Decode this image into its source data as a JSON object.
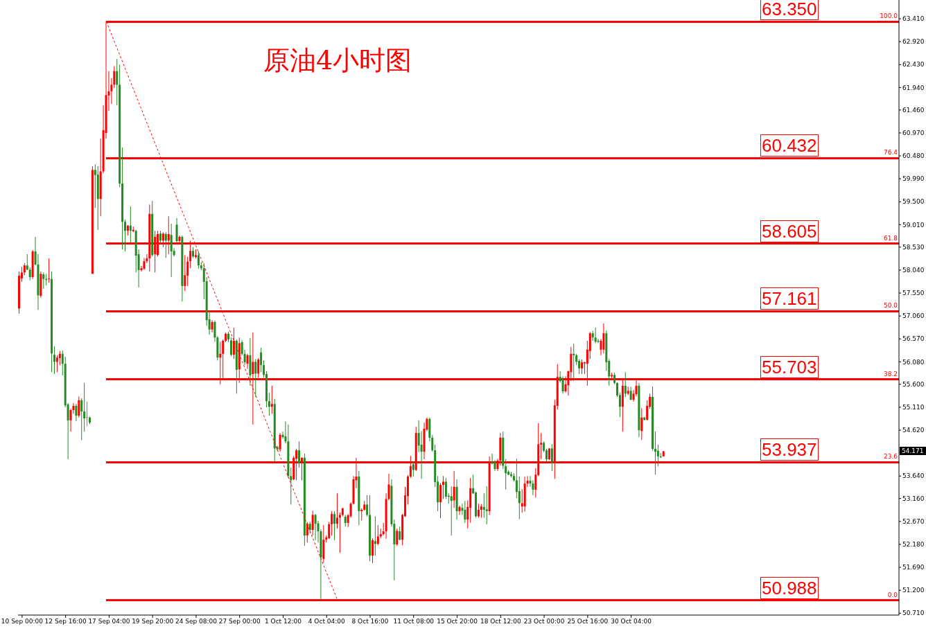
{
  "chart_data": {
    "type": "candlestick",
    "title": "原油4小时图",
    "categories": [
      null,
      "10 Sep 00:00",
      null,
      null,
      null,
      null,
      null,
      null,
      null,
      null,
      null,
      null,
      null,
      null,
      null,
      null,
      null,
      "12 Sep 16:00",
      null,
      null,
      null,
      null,
      null,
      null,
      null,
      null,
      null,
      null,
      null,
      null,
      null,
      null,
      null,
      "17 Sep 04:00",
      null,
      null,
      null,
      null,
      null,
      null,
      null,
      null,
      null,
      null,
      null,
      null,
      null,
      null,
      null,
      "19 Sep 20:00",
      null,
      null,
      null,
      null,
      null,
      null,
      null,
      null,
      null,
      null,
      null,
      null,
      null,
      null,
      null,
      "24 Sep 08:00",
      null,
      null,
      null,
      null,
      null,
      null,
      null,
      null,
      null,
      null,
      null,
      null,
      null,
      null,
      null,
      "27 Sep 00:00",
      null,
      null,
      null,
      null,
      null,
      null,
      null,
      null,
      null,
      null,
      null,
      null,
      null,
      null,
      null,
      "1 Oct 12:00",
      null,
      null,
      null,
      null,
      null,
      null,
      null,
      null,
      null,
      null,
      null,
      null,
      null,
      null,
      null,
      "4 Oct 04:00",
      null,
      null,
      null,
      null,
      null,
      null,
      null,
      null,
      null,
      null,
      null,
      null,
      null,
      null,
      null,
      "8 Oct 16:00",
      null,
      null,
      null,
      null,
      null,
      null,
      null,
      null,
      null,
      null,
      null,
      null,
      null,
      null,
      null,
      "11 Oct 08:00",
      null,
      null,
      null,
      null,
      null,
      null,
      null,
      null,
      null,
      null,
      null,
      null,
      null,
      null,
      null,
      "15 Oct 20:00",
      null,
      null,
      null,
      null,
      null,
      null,
      null,
      null,
      null,
      null,
      null,
      null,
      null,
      null,
      null,
      "18 Oct 12:00",
      null,
      null,
      null,
      null,
      null,
      null,
      null,
      null,
      null,
      null,
      null,
      null,
      null,
      null,
      null,
      "23 Oct 00:00",
      null,
      null,
      null,
      null,
      null,
      null,
      null,
      null,
      null,
      null,
      null,
      null,
      null,
      null,
      null,
      "25 Oct 16:00",
      null,
      null,
      null,
      null,
      null,
      null,
      null,
      null,
      null,
      null,
      null,
      null,
      null,
      null,
      null,
      "30 Oct 04:00",
      null,
      null,
      null,
      null,
      null,
      null,
      null,
      null,
      null,
      null,
      null,
      null,
      null,
      null,
      null,
      null,
      null,
      null,
      null,
      null,
      null,
      null,
      null,
      null,
      null,
      null,
      null,
      null,
      null,
      null,
      null,
      null,
      null,
      null,
      null,
      null,
      null,
      null,
      null,
      null,
      null,
      null,
      null,
      null,
      null,
      null,
      null,
      null,
      null,
      null,
      null,
      null,
      null,
      null,
      null,
      null,
      null,
      null,
      null,
      null,
      null,
      null,
      null,
      null,
      null,
      null,
      null,
      null,
      null,
      null,
      null,
      null,
      null,
      null,
      null,
      null,
      null,
      null,
      null,
      null,
      null,
      null,
      null,
      null,
      null,
      null,
      null,
      null,
      null,
      null,
      null,
      null,
      null,
      null,
      null,
      null,
      null,
      null
    ],
    "ohlc": [
      [
        57.22,
        58.01,
        57.11,
        57.92
      ],
      [
        57.86,
        58.11,
        57.79,
        57.99
      ],
      [
        57.99,
        58.19,
        57.93,
        58.14
      ],
      [
        58.14,
        58.38,
        58.04,
        58.05
      ],
      [
        58.05,
        58.1,
        57.82,
        57.89
      ],
      [
        57.89,
        58.47,
        57.85,
        58.44
      ],
      [
        58.44,
        58.75,
        58.14,
        58.16
      ],
      [
        58.16,
        58.38,
        57.19,
        57.5
      ],
      [
        57.49,
        58.01,
        57.45,
        57.96
      ],
      [
        57.95,
        57.99,
        57.64,
        57.85
      ],
      [
        57.85,
        57.96,
        57.71,
        57.83
      ],
      [
        57.85,
        58.29,
        57.77,
        57.86
      ],
      [
        57.85,
        58.01,
        55.86,
        56.26
      ],
      [
        56.23,
        56.41,
        55.82,
        56.08
      ],
      [
        56.08,
        56.22,
        55.86,
        56.17
      ],
      [
        56.16,
        56.31,
        56.01,
        56.25
      ],
      [
        56.25,
        56.32,
        55.79,
        56.04
      ],
      [
        56.04,
        56.19,
        55.11,
        55.15
      ],
      [
        55.17,
        55.2,
        54.0,
        54.83
      ],
      [
        54.83,
        55.08,
        54.59,
        55.05
      ],
      [
        55.05,
        55.2,
        54.97,
        55.14
      ],
      [
        55.14,
        55.18,
        54.81,
        54.93
      ],
      [
        54.93,
        55.34,
        54.89,
        55.26
      ],
      [
        55.26,
        55.3,
        54.41,
        55.02
      ],
      [
        55.02,
        55.63,
        54.59,
        54.87
      ],
      [
        54.9,
        55.23,
        54.71,
        54.9
      ],
      [
        54.89,
        54.91,
        54.75,
        54.78
      ],
      [
        57.96,
        60.26,
        57.96,
        60.18
      ],
      [
        60.18,
        60.3,
        59.37,
        60.07
      ],
      [
        60.08,
        60.26,
        58.9,
        59.56
      ],
      [
        59.56,
        60.85,
        59.19,
        60.15
      ],
      [
        60.15,
        61.56,
        60.11,
        61.03
      ],
      [
        60.97,
        63.35,
        60.85,
        61.78
      ],
      [
        61.77,
        62.29,
        61.44,
        61.86
      ],
      [
        61.86,
        62.14,
        61.59,
        62.0
      ],
      [
        62.0,
        62.4,
        61.93,
        62.29
      ],
      [
        62.29,
        62.55,
        61.56,
        62.0
      ],
      [
        62.0,
        62.43,
        59.81,
        59.89
      ],
      [
        59.89,
        60.66,
        58.48,
        59.07
      ],
      [
        59.07,
        59.12,
        58.44,
        58.88
      ],
      [
        58.88,
        59.0,
        58.78,
        58.99
      ],
      [
        58.99,
        59.4,
        58.63,
        58.88
      ],
      [
        58.87,
        58.97,
        58.85,
        58.9
      ],
      [
        58.88,
        58.9,
        57.99,
        58.35
      ],
      [
        58.38,
        58.48,
        57.67,
        58.04
      ],
      [
        58.04,
        58.13,
        58.01,
        58.08
      ],
      [
        58.07,
        58.3,
        58.04,
        58.23
      ],
      [
        58.23,
        58.38,
        58.19,
        58.29
      ],
      [
        58.29,
        59.44,
        58.01,
        59.24
      ],
      [
        59.24,
        59.52,
        58.33,
        58.36
      ],
      [
        58.38,
        58.88,
        57.99,
        58.75
      ],
      [
        58.36,
        58.88,
        58.33,
        58.81
      ],
      [
        58.82,
        58.88,
        58.59,
        58.67
      ],
      [
        58.67,
        58.85,
        58.53,
        58.82
      ],
      [
        58.81,
        58.85,
        58.3,
        58.67
      ],
      [
        58.67,
        59.19,
        58.38,
        58.81
      ],
      [
        58.79,
        59.03,
        57.89,
        58.44
      ],
      [
        58.45,
        58.51,
        58.33,
        58.36
      ],
      [
        59.01,
        59.15,
        58.63,
        58.66
      ],
      [
        58.66,
        58.78,
        58.63,
        58.75
      ],
      [
        58.75,
        58.78,
        57.37,
        57.7
      ],
      [
        57.7,
        58.36,
        57.59,
        57.93
      ],
      [
        57.92,
        58.33,
        57.7,
        58.22
      ],
      [
        58.23,
        58.67,
        58.08,
        58.45
      ],
      [
        58.45,
        58.53,
        58.3,
        58.33
      ],
      [
        58.32,
        58.48,
        58.29,
        58.36
      ],
      [
        58.36,
        58.44,
        58.07,
        58.14
      ],
      [
        58.14,
        58.21,
        58.04,
        58.08
      ],
      [
        58.08,
        58.19,
        57.42,
        57.79
      ],
      [
        57.8,
        57.89,
        56.85,
        56.97
      ],
      [
        56.99,
        57.15,
        56.66,
        56.77
      ],
      [
        56.77,
        56.97,
        56.71,
        56.93
      ],
      [
        56.93,
        56.96,
        56.51,
        56.6
      ],
      [
        56.6,
        56.63,
        56.11,
        56.17
      ],
      [
        56.17,
        56.51,
        55.6,
        56.25
      ],
      [
        56.25,
        56.56,
        55.71,
        56.53
      ],
      [
        56.53,
        56.71,
        56.5,
        56.68
      ],
      [
        56.68,
        56.72,
        56.5,
        56.56
      ],
      [
        56.54,
        56.6,
        56.2,
        56.23
      ],
      [
        56.23,
        56.81,
        56.14,
        56.53
      ],
      [
        56.53,
        56.56,
        55.4,
        55.91
      ],
      [
        55.92,
        56.6,
        55.63,
        56.48
      ],
      [
        56.5,
        56.54,
        56.22,
        56.25
      ],
      [
        56.25,
        56.34,
        56.01,
        56.07
      ],
      [
        56.04,
        56.25,
        55.93,
        56.22
      ],
      [
        56.22,
        56.59,
        55.57,
        55.79
      ],
      [
        55.82,
        56.71,
        54.74,
        56.08
      ],
      [
        56.08,
        56.14,
        55.33,
        55.83
      ],
      [
        55.83,
        56.16,
        55.74,
        56.13
      ],
      [
        56.28,
        56.38,
        55.86,
        56.01
      ],
      [
        56.01,
        56.11,
        55.74,
        55.8
      ],
      [
        55.82,
        55.88,
        55.11,
        55.24
      ],
      [
        55.24,
        55.42,
        54.93,
        55.12
      ],
      [
        55.12,
        55.57,
        54.97,
        55.18
      ],
      [
        55.18,
        55.29,
        53.94,
        54.23
      ],
      [
        54.26,
        54.29,
        54.17,
        54.21
      ],
      [
        54.21,
        54.56,
        54.16,
        54.52
      ],
      [
        54.52,
        54.59,
        54.44,
        54.47
      ],
      [
        54.49,
        54.81,
        54.34,
        54.38
      ],
      [
        54.38,
        54.74,
        53.6,
        53.64
      ],
      [
        53.64,
        53.82,
        53.03,
        53.55
      ],
      [
        53.57,
        54.07,
        53.55,
        54.03
      ],
      [
        54.01,
        54.22,
        53.55,
        54.19
      ],
      [
        54.19,
        54.38,
        53.82,
        53.92
      ],
      [
        53.92,
        54.04,
        53.55,
        54.03
      ],
      [
        54.03,
        54.12,
        52.15,
        52.37
      ],
      [
        52.37,
        52.66,
        52.22,
        52.62
      ],
      [
        52.62,
        52.66,
        52.41,
        52.49
      ],
      [
        52.49,
        52.9,
        52.37,
        52.81
      ],
      [
        52.81,
        52.83,
        52.27,
        52.62
      ],
      [
        52.63,
        52.68,
        52.22,
        52.46
      ],
      [
        52.46,
        52.5,
        50.99,
        51.9
      ],
      [
        51.87,
        52.59,
        51.79,
        52.28
      ],
      [
        52.28,
        52.37,
        52.22,
        52.33
      ],
      [
        52.31,
        52.66,
        52.3,
        52.61
      ],
      [
        52.61,
        52.89,
        52.37,
        52.83
      ],
      [
        52.83,
        52.89,
        52.27,
        52.62
      ],
      [
        52.62,
        53.27,
        52.52,
        52.75
      ],
      [
        52.75,
        52.86,
        52.0,
        52.81
      ],
      [
        52.81,
        52.96,
        52.78,
        52.95
      ],
      [
        52.77,
        52.81,
        52.56,
        52.64
      ],
      [
        52.64,
        52.83,
        52.55,
        52.8
      ],
      [
        52.78,
        53.08,
        52.75,
        53.05
      ],
      [
        53.05,
        53.64,
        53.03,
        53.57
      ],
      [
        53.55,
        54.03,
        53.38,
        53.63
      ],
      [
        53.63,
        53.75,
        52.59,
        52.89
      ],
      [
        52.89,
        52.95,
        52.69,
        52.92
      ],
      [
        52.92,
        53.11,
        52.9,
        53.03
      ],
      [
        53.03,
        53.23,
        52.78,
        52.81
      ],
      [
        52.81,
        53.23,
        51.82,
        51.94
      ],
      [
        51.94,
        52.31,
        51.78,
        52.27
      ],
      [
        52.25,
        52.78,
        51.94,
        52.19
      ],
      [
        52.19,
        52.59,
        52.16,
        52.35
      ],
      [
        52.35,
        52.52,
        52.31,
        52.4
      ],
      [
        52.4,
        52.64,
        52.37,
        52.46
      ],
      [
        52.46,
        53.27,
        52.3,
        53.15
      ],
      [
        53.15,
        53.69,
        53.12,
        53.46
      ],
      [
        53.43,
        53.57,
        52.56,
        52.61
      ],
      [
        52.62,
        52.71,
        51.41,
        52.18
      ],
      [
        52.18,
        52.52,
        52.15,
        52.47
      ],
      [
        52.46,
        52.56,
        52.27,
        52.28
      ],
      [
        52.28,
        52.83,
        52.16,
        52.81
      ],
      [
        52.78,
        53.41,
        52.77,
        53.23
      ],
      [
        53.21,
        53.66,
        53.03,
        53.63
      ],
      [
        53.63,
        54.07,
        53.6,
        53.85
      ],
      [
        53.89,
        53.94,
        53.63,
        53.77
      ],
      [
        53.77,
        54.69,
        53.75,
        54.56
      ],
      [
        54.56,
        54.83,
        54.15,
        54.29
      ],
      [
        54.31,
        54.6,
        53.58,
        54.16
      ],
      [
        54.16,
        54.78,
        54.0,
        54.65
      ],
      [
        54.63,
        54.89,
        54.6,
        54.86
      ],
      [
        54.86,
        54.89,
        54.38,
        54.46
      ],
      [
        54.46,
        54.52,
        54.16,
        54.19
      ],
      [
        54.19,
        54.31,
        53.41,
        53.51
      ],
      [
        53.52,
        53.64,
        52.89,
        53.08
      ],
      [
        53.08,
        53.49,
        52.74,
        53.45
      ],
      [
        53.45,
        53.64,
        53.15,
        53.52
      ],
      [
        53.52,
        53.6,
        53.15,
        53.2
      ],
      [
        53.22,
        53.27,
        53.05,
        53.2
      ],
      [
        53.21,
        53.42,
        52.37,
        53.11
      ],
      [
        53.12,
        53.75,
        52.96,
        53.41
      ],
      [
        53.41,
        53.57,
        52.71,
        52.89
      ],
      [
        52.89,
        53.01,
        52.81,
        52.98
      ],
      [
        52.96,
        53.05,
        52.81,
        52.9
      ],
      [
        52.92,
        53.11,
        52.64,
        52.71
      ],
      [
        52.71,
        53.12,
        52.52,
        52.98
      ],
      [
        52.96,
        53.6,
        52.64,
        53.38
      ],
      [
        53.38,
        53.67,
        53.26,
        53.27
      ],
      [
        53.29,
        53.3,
        52.75,
        52.78
      ],
      [
        52.78,
        53.05,
        52.75,
        52.92
      ],
      [
        52.92,
        53.04,
        52.75,
        52.99
      ],
      [
        52.98,
        53.27,
        52.75,
        52.92
      ],
      [
        52.93,
        53.42,
        52.61,
        52.89
      ],
      [
        52.89,
        54.06,
        52.81,
        53.95
      ],
      [
        53.95,
        54.12,
        53.89,
        53.92
      ],
      [
        53.94,
        53.98,
        53.75,
        53.79
      ],
      [
        53.79,
        54.01,
        53.75,
        53.97
      ],
      [
        53.97,
        54.56,
        53.86,
        54.46
      ],
      [
        54.46,
        54.59,
        53.79,
        53.86
      ],
      [
        53.85,
        54.0,
        53.35,
        53.7
      ],
      [
        53.73,
        53.76,
        53.66,
        53.67
      ],
      [
        53.68,
        53.73,
        53.61,
        53.64
      ],
      [
        53.64,
        53.7,
        53.52,
        53.55
      ],
      [
        53.55,
        54.01,
        53.17,
        53.3
      ],
      [
        53.32,
        53.63,
        52.72,
        53.06
      ],
      [
        52.99,
        53.36,
        52.86,
        53.06
      ],
      [
        52.99,
        53.63,
        52.88,
        53.48
      ],
      [
        53.48,
        53.64,
        53.41,
        53.54
      ],
      [
        53.54,
        53.64,
        53.41,
        53.48
      ],
      [
        53.48,
        53.55,
        53.23,
        53.35
      ],
      [
        53.35,
        53.81,
        53.18,
        53.67
      ],
      [
        53.66,
        54.77,
        53.64,
        54.32
      ],
      [
        54.31,
        54.56,
        54.0,
        54.35
      ],
      [
        54.35,
        54.38,
        54.15,
        54.18
      ],
      [
        54.19,
        54.22,
        53.94,
        54.0
      ],
      [
        54.0,
        54.23,
        53.98,
        54.23
      ],
      [
        54.23,
        54.32,
        53.75,
        53.92
      ],
      [
        53.92,
        55.27,
        53.58,
        55.15
      ],
      [
        55.14,
        56.03,
        55.06,
        55.76
      ],
      [
        55.76,
        55.88,
        55.64,
        55.67
      ],
      [
        55.71,
        55.77,
        55.4,
        55.45
      ],
      [
        55.45,
        55.77,
        55.42,
        55.6
      ],
      [
        55.58,
        55.89,
        55.36,
        55.88
      ],
      [
        55.86,
        56.4,
        55.67,
        56.25
      ],
      [
        56.25,
        56.47,
        55.67,
        56.22
      ],
      [
        56.22,
        56.25,
        56.01,
        56.08
      ],
      [
        56.1,
        56.14,
        55.82,
        55.94
      ],
      [
        55.94,
        56.13,
        55.82,
        56.07
      ],
      [
        56.05,
        56.08,
        55.82,
        56.07
      ],
      [
        56.04,
        56.53,
        55.57,
        56.34
      ],
      [
        56.31,
        56.72,
        56.14,
        56.69
      ],
      [
        56.69,
        56.74,
        56.53,
        56.6
      ],
      [
        56.6,
        56.81,
        56.48,
        56.51
      ],
      [
        56.53,
        56.57,
        56.48,
        56.51
      ],
      [
        56.34,
        56.57,
        56.22,
        56.53
      ],
      [
        56.34,
        56.9,
        56.26,
        56.69
      ],
      [
        56.69,
        56.75,
        55.89,
        56.07
      ],
      [
        56.1,
        56.14,
        55.57,
        55.77
      ],
      [
        55.77,
        55.85,
        55.71,
        55.8
      ],
      [
        55.8,
        55.85,
        55.6,
        55.63
      ],
      [
        55.63,
        55.64,
        55.33,
        55.36
      ],
      [
        55.37,
        55.42,
        54.9,
        55.12
      ],
      [
        55.12,
        55.71,
        54.59,
        55.57
      ],
      [
        55.57,
        55.86,
        55.33,
        55.4
      ],
      [
        55.4,
        55.55,
        55.37,
        55.46
      ],
      [
        55.46,
        55.55,
        55.26,
        55.27
      ],
      [
        55.27,
        55.48,
        55.23,
        55.4
      ],
      [
        55.39,
        55.71,
        55.34,
        55.57
      ],
      [
        55.57,
        55.63,
        54.47,
        54.62
      ],
      [
        54.6,
        55.09,
        54.41,
        54.89
      ],
      [
        54.89,
        54.9,
        54.83,
        54.84
      ],
      [
        54.84,
        55.26,
        54.83,
        55.14
      ],
      [
        55.12,
        55.4,
        55.08,
        55.33
      ],
      [
        55.33,
        55.55,
        54.18,
        54.22
      ],
      [
        54.22,
        54.59,
        53.67,
        54.16
      ],
      [
        54.18,
        54.31,
        53.85,
        54.06
      ],
      [
        54.06,
        54.13,
        54.03,
        54.04
      ],
      [
        54.06,
        54.17,
        54.06,
        54.17
      ],
      null,
      null,
      null,
      null,
      null,
      null,
      null,
      null,
      null,
      null,
      null,
      null,
      null,
      null,
      null,
      null,
      null,
      null,
      null,
      null,
      null,
      null,
      null,
      null,
      null,
      null,
      null,
      null,
      null,
      null,
      null,
      null,
      null,
      null,
      null,
      null,
      null,
      null,
      null,
      null,
      null,
      null,
      null,
      null,
      null,
      null,
      null,
      null,
      null,
      null,
      null,
      null,
      null,
      null,
      null,
      null,
      null,
      null,
      null,
      null,
      null,
      null,
      null,
      null,
      null,
      null,
      null,
      null,
      null,
      null,
      null,
      null,
      null,
      null,
      null,
      null,
      null,
      null,
      null,
      null,
      null,
      null,
      null,
      null,
      null,
      null
    ],
    "colors": [
      "#ff0000",
      "#ff0000",
      "#ff0000",
      "#228b22",
      "#228b22",
      "#ff0000",
      "#228b22",
      "#228b22",
      "#ff0000",
      "#228b22",
      "#228b22",
      "#ff0000",
      "#228b22",
      "#228b22",
      "#ff0000",
      "#ff0000",
      "#228b22",
      "#228b22",
      "#228b22",
      "#ff0000",
      "#ff0000",
      "#228b22",
      "#ff0000",
      "#228b22",
      "#228b22",
      "#808080",
      "#228b22",
      "#ff0000",
      "#228b22",
      "#228b22",
      "#ff0000",
      "#ff0000",
      "#ff0000",
      "#ff0000",
      "#ff0000",
      "#ff0000",
      "#228b22",
      "#228b22",
      "#228b22",
      "#228b22",
      "#ff0000",
      "#228b22",
      "#ff0000",
      "#228b22",
      "#228b22",
      "#ff0000",
      "#ff0000",
      "#ff0000",
      "#ff0000",
      "#228b22",
      "#ff0000",
      "#ff0000",
      "#228b22",
      "#ff0000",
      "#228b22",
      "#ff0000",
      "#228b22",
      "#228b22",
      "#228b22",
      "#ff0000",
      "#228b22",
      "#ff0000",
      "#ff0000",
      "#ff0000",
      "#228b22",
      "#ff0000",
      "#228b22",
      "#228b22",
      "#228b22",
      "#228b22",
      "#228b22",
      "#ff0000",
      "#228b22",
      "#228b22",
      "#ff0000",
      "#ff0000",
      "#ff0000",
      "#228b22",
      "#228b22",
      "#ff0000",
      "#228b22",
      "#ff0000",
      "#228b22",
      "#228b22",
      "#ff0000",
      "#228b22",
      "#ff0000",
      "#228b22",
      "#ff0000",
      "#228b22",
      "#228b22",
      "#228b22",
      "#228b22",
      "#ff0000",
      "#228b22",
      "#228b22",
      "#ff0000",
      "#228b22",
      "#228b22",
      "#228b22",
      "#228b22",
      "#ff0000",
      "#ff0000",
      "#228b22",
      "#ff0000",
      "#228b22",
      "#ff0000",
      "#228b22",
      "#ff0000",
      "#228b22",
      "#228b22",
      "#228b22",
      "#ff0000",
      "#ff0000",
      "#ff0000",
      "#ff0000",
      "#228b22",
      "#ff0000",
      "#ff0000",
      "#ff0000",
      "#228b22",
      "#ff0000",
      "#ff0000",
      "#ff0000",
      "#ff0000",
      "#228b22",
      "#ff0000",
      "#ff0000",
      "#228b22",
      "#228b22",
      "#ff0000",
      "#228b22",
      "#ff0000",
      "#ff0000",
      "#ff0000",
      "#ff0000",
      "#ff0000",
      "#228b22",
      "#228b22",
      "#ff0000",
      "#228b22",
      "#ff0000",
      "#ff0000",
      "#ff0000",
      "#ff0000",
      "#228b22",
      "#ff0000",
      "#228b22",
      "#228b22",
      "#ff0000",
      "#ff0000",
      "#228b22",
      "#228b22",
      "#228b22",
      "#228b22",
      "#ff0000",
      "#ff0000",
      "#228b22",
      "#228b22",
      "#228b22",
      "#ff0000",
      "#228b22",
      "#ff0000",
      "#228b22",
      "#228b22",
      "#ff0000",
      "#ff0000",
      "#228b22",
      "#228b22",
      "#ff0000",
      "#ff0000",
      "#228b22",
      "#228b22",
      "#ff0000",
      "#228b22",
      "#228b22",
      "#ff0000",
      "#ff0000",
      "#228b22",
      "#228b22",
      "#228b22",
      "#228b22",
      "#228b22",
      "#228b22",
      "#228b22",
      "#ff0000",
      "#ff0000",
      "#ff0000",
      "#228b22",
      "#228b22",
      "#ff0000",
      "#ff0000",
      "#ff0000",
      "#228b22",
      "#228b22",
      "#ff0000",
      "#228b22",
      "#ff0000",
      "#ff0000",
      "#228b22",
      "#228b22",
      "#ff0000",
      "#ff0000",
      "#ff0000",
      "#228b22",
      "#228b22",
      "#228b22",
      "#ff0000",
      "#ff0000",
      "#ff0000",
      "#ff0000",
      "#228b22",
      "#228b22",
      "#228b22",
      "#ff0000",
      "#ff0000",
      "#228b22",
      "#228b22",
      "#ff0000",
      "#228b22",
      "#228b22",
      "#228b22",
      "#ff0000",
      "#228b22",
      "#ff0000",
      "#228b22",
      "#ff0000",
      "#ff0000",
      "#228b22",
      "#ff0000",
      "#228b22",
      "#ff0000",
      "#ff0000",
      "#228b22",
      "#228b22",
      "#228b22",
      "#228b22",
      "#ff0000",
      null,
      null,
      null,
      null,
      null,
      null,
      null,
      null,
      null,
      null,
      null,
      null,
      null,
      null,
      null,
      null,
      null,
      null,
      null,
      null,
      null,
      null,
      null,
      null,
      null,
      null,
      null,
      null,
      null,
      null,
      null,
      null,
      null,
      null,
      null,
      null,
      null,
      null,
      null,
      null,
      null,
      null,
      null,
      null,
      null,
      null,
      null,
      null,
      null,
      null,
      null,
      null,
      null,
      null,
      null,
      null,
      null,
      null,
      null,
      null,
      null,
      null,
      null,
      null,
      null,
      null,
      null,
      null,
      null,
      null,
      null,
      null,
      null,
      null,
      null,
      null,
      null,
      null,
      null,
      null,
      null,
      null,
      null,
      null,
      null,
      null
    ],
    "series": [
      {
        "type": "line",
        "color": "#ff0000",
        "line_style": "dashed",
        "values": [
          null,
          null,
          null,
          null,
          null,
          null,
          null,
          null,
          null,
          null,
          null,
          null,
          null,
          null,
          null,
          null,
          null,
          null,
          null,
          null,
          null,
          null,
          null,
          null,
          null,
          null,
          null,
          null,
          null,
          null,
          null,
          null,
          63.35,
          null,
          null,
          null,
          null,
          null,
          null,
          null,
          null,
          null,
          null,
          null,
          null,
          null,
          null,
          null,
          null,
          null,
          null,
          null,
          null,
          null,
          null,
          null,
          null,
          null,
          null,
          null,
          null,
          null,
          null,
          null,
          null,
          null,
          null,
          null,
          null,
          null,
          null,
          null,
          null,
          null,
          null,
          null,
          null,
          null,
          null,
          null,
          null,
          null,
          null,
          null,
          null,
          null,
          null,
          null,
          null,
          null,
          null,
          null,
          null,
          null,
          null,
          null,
          null,
          null,
          null,
          null,
          null,
          null,
          null,
          null,
          null,
          null,
          null,
          null,
          null,
          null,
          null,
          null,
          null,
          null,
          null,
          null,
          null,
          50.99,
          null,
          null,
          null,
          null,
          null,
          null,
          null,
          null,
          null,
          null,
          null,
          null,
          null,
          null,
          null,
          null,
          null,
          null,
          null,
          null,
          null,
          null,
          null,
          null,
          null,
          null,
          null,
          null,
          null,
          null,
          null,
          null,
          null,
          null,
          null,
          null,
          null,
          null,
          null,
          null,
          null,
          null,
          null,
          null,
          null,
          null,
          null,
          null,
          null,
          null,
          null,
          null,
          null,
          null,
          null,
          null,
          null,
          null,
          null,
          null,
          null,
          null,
          null,
          null,
          null,
          null,
          null,
          null,
          null,
          null,
          null,
          null,
          null,
          null,
          null,
          null,
          null,
          null,
          null,
          null,
          null,
          null,
          null,
          null,
          null,
          null,
          null,
          null,
          null,
          null,
          null,
          null,
          null,
          null,
          null,
          null,
          null,
          null,
          null,
          null,
          null,
          null,
          null,
          null,
          null,
          null,
          null,
          null,
          null,
          null,
          null,
          null,
          null,
          null,
          null,
          null,
          null,
          null,
          null,
          null,
          null,
          null,
          null,
          null,
          null,
          null,
          null,
          null,
          null,
          null,
          null,
          null,
          null,
          null,
          null,
          null,
          null,
          null,
          null,
          null,
          null,
          null,
          null,
          null,
          null,
          null,
          null,
          null,
          null,
          null,
          null,
          null,
          null,
          null,
          null,
          null,
          null,
          null,
          null,
          null,
          null,
          null,
          null,
          null,
          null,
          null,
          null,
          null,
          null,
          null,
          null,
          null,
          null,
          null,
          null,
          null,
          null,
          null,
          null,
          null,
          null,
          null,
          null,
          null,
          null,
          null,
          null,
          null,
          null,
          null,
          null,
          null,
          null,
          null,
          null,
          null,
          null,
          null,
          null,
          null,
          null,
          null,
          null,
          null,
          null,
          null
        ]
      }
    ],
    "ylim": [
      50.67,
      63.81
    ],
    "yticks": [
      {
        "value": 63.41,
        "label": "63.410"
      },
      {
        "value": 62.92,
        "label": "62.920"
      },
      {
        "value": 62.43,
        "label": "62.430"
      },
      {
        "value": 61.94,
        "label": "61.940"
      },
      {
        "value": 61.46,
        "label": "61.460"
      },
      {
        "value": 60.97,
        "label": "60.970"
      },
      {
        "value": 60.48,
        "label": "60.480"
      },
      {
        "value": 59.99,
        "label": "59.990"
      },
      {
        "value": 59.5,
        "label": "59.500"
      },
      {
        "value": 59.01,
        "label": "59.010"
      },
      {
        "value": 58.53,
        "label": "58.530"
      },
      {
        "value": 58.04,
        "label": "58.040"
      },
      {
        "value": 57.55,
        "label": "57.550"
      },
      {
        "value": 57.06,
        "label": "57.060"
      },
      {
        "value": 56.57,
        "label": "56.570"
      },
      {
        "value": 56.08,
        "label": "56.080"
      },
      {
        "value": 55.6,
        "label": "55.600"
      },
      {
        "value": 55.11,
        "label": "55.110"
      },
      {
        "value": 54.62,
        "label": "54.620"
      },
      {
        "value": 53.64,
        "label": "53.640"
      },
      {
        "value": 53.16,
        "label": "53.160"
      },
      {
        "value": 52.67,
        "label": "52.670"
      },
      {
        "value": 52.18,
        "label": "52.180"
      },
      {
        "value": 51.69,
        "label": "51.690"
      },
      {
        "value": 51.2,
        "label": "51.200"
      },
      {
        "value": 50.71,
        "label": "50.710"
      }
    ],
    "ref_lines": [
      {
        "axis": "y",
        "value": 63.35,
        "label": "63.350",
        "color": "#ff0000"
      },
      {
        "axis": "y",
        "value": 60.432,
        "label": "60.432",
        "color": "#ff0000"
      },
      {
        "axis": "y",
        "value": 58.605,
        "label": "58.605",
        "color": "#ff0000"
      },
      {
        "axis": "y",
        "value": 57.161,
        "label": "57.161",
        "color": "#ff0000"
      },
      {
        "axis": "y",
        "value": 55.703,
        "label": "55.703",
        "color": "#ff0000"
      },
      {
        "axis": "y",
        "value": 53.937,
        "label": "53.937",
        "color": "#ff0000"
      },
      {
        "axis": "y",
        "value": 50.988,
        "label": "50.988",
        "color": "#ff0000"
      }
    ],
    "annotations": [
      {
        "text": "100.0",
        "y": 63.35
      },
      {
        "text": "76.4",
        "y": 60.432
      },
      {
        "text": "61.8",
        "y": 58.605
      },
      {
        "text": "50.0",
        "y": 57.161
      },
      {
        "text": "38.2",
        "y": 55.703
      },
      {
        "text": "23.6",
        "y": 53.937
      },
      {
        "text": "0.0",
        "y": 50.988
      },
      {
        "text": "54.171",
        "y": 54.171
      }
    ]
  }
}
